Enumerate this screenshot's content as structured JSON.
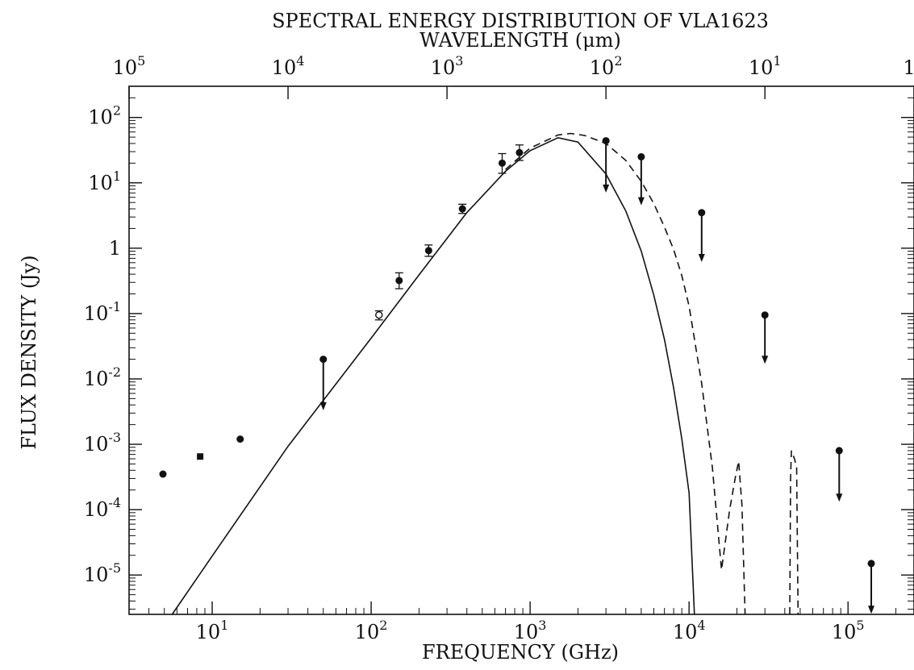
{
  "chart_data": {
    "type": "scatter",
    "title": "SPECTRAL ENERGY DISTRIBUTION OF VLA1623",
    "top_axis_label": "WAVELENGTH (μm)",
    "xlabel": "FREQUENCY (GHz)",
    "ylabel": "FLUX DENSITY (Jy)",
    "x_scale": "log",
    "y_scale": "log",
    "xlim": [
      3,
      260000
    ],
    "ylim": [
      2.5e-06,
      300
    ],
    "x_ticks": [
      {
        "value": 10,
        "base": "10",
        "exp": "1"
      },
      {
        "value": 100,
        "base": "10",
        "exp": "2"
      },
      {
        "value": 1000,
        "base": "10",
        "exp": "3"
      },
      {
        "value": 10000,
        "base": "10",
        "exp": "4"
      },
      {
        "value": 100000,
        "base": "10",
        "exp": "5"
      }
    ],
    "y_ticks": [
      {
        "value": 100,
        "base": "10",
        "exp": "2"
      },
      {
        "value": 10,
        "base": "10",
        "exp": "1"
      },
      {
        "value": 1,
        "base": "1",
        "exp": ""
      },
      {
        "value": 0.1,
        "base": "10",
        "exp": "-1"
      },
      {
        "value": 0.01,
        "base": "10",
        "exp": "-2"
      },
      {
        "value": 0.001,
        "base": "10",
        "exp": "-3"
      },
      {
        "value": 0.0001,
        "base": "10",
        "exp": "-4"
      },
      {
        "value": 1e-05,
        "base": "10",
        "exp": "-5"
      }
    ],
    "top_ticks": [
      {
        "wavelength": 100000,
        "base": "10",
        "exp": "5"
      },
      {
        "wavelength": 10000,
        "base": "10",
        "exp": "4"
      },
      {
        "wavelength": 1000,
        "base": "10",
        "exp": "3"
      },
      {
        "wavelength": 100,
        "base": "10",
        "exp": "2"
      },
      {
        "wavelength": 10,
        "base": "10",
        "exp": "1"
      },
      {
        "wavelength": 1,
        "base": "1",
        "exp": ""
      }
    ],
    "series": [
      {
        "kind": "detections",
        "points": [
          {
            "x": 4.9,
            "y": 0.00035
          },
          {
            "x": 8.4,
            "y": 0.00065,
            "marker": "square"
          },
          {
            "x": 15,
            "y": 0.0012
          },
          {
            "x": 112,
            "y": 0.095,
            "err_lo": 0.08,
            "err_hi": 0.11,
            "marker": "open"
          },
          {
            "x": 150,
            "y": 0.32,
            "err_lo": 0.24,
            "err_hi": 0.42
          },
          {
            "x": 230,
            "y": 0.92,
            "err_lo": 0.75,
            "err_hi": 1.12
          },
          {
            "x": 375,
            "y": 4.0,
            "err_lo": 3.4,
            "err_hi": 4.7
          },
          {
            "x": 667,
            "y": 20,
            "err_lo": 14,
            "err_hi": 28
          },
          {
            "x": 857,
            "y": 29,
            "err_lo": 22,
            "err_hi": 38
          }
        ]
      },
      {
        "kind": "upper_limits",
        "points": [
          {
            "x": 50,
            "y": 0.02,
            "y_end": 0.0035
          },
          {
            "x": 3000,
            "y": 44,
            "y_end": 7.5
          },
          {
            "x": 5000,
            "y": 25,
            "y_end": 4.8
          },
          {
            "x": 12000,
            "y": 3.5,
            "y_end": 0.65
          },
          {
            "x": 30000,
            "y": 0.095,
            "y_end": 0.018
          },
          {
            "x": 88000,
            "y": 0.0008,
            "y_end": 0.00014
          },
          {
            "x": 140000,
            "y": 1.5e-05,
            "y_end": 2.7e-06
          }
        ]
      },
      {
        "kind": "model_solid",
        "points": [
          [
            5.6,
            2.5e-06
          ],
          [
            10,
            1.95e-05
          ],
          [
            30,
            0.00093
          ],
          [
            100,
            0.042
          ],
          [
            200,
            0.39
          ],
          [
            400,
            3.5
          ],
          [
            700,
            15
          ],
          [
            1000,
            31
          ],
          [
            1500,
            49
          ],
          [
            2000,
            42
          ],
          [
            3000,
            13.7
          ],
          [
            4000,
            3.7
          ],
          [
            5000,
            0.9
          ],
          [
            6000,
            0.19
          ],
          [
            7000,
            0.04
          ],
          [
            8000,
            0.0072
          ],
          [
            9000,
            0.0012
          ],
          [
            10000,
            0.00018
          ],
          [
            10800,
            2.5e-06
          ]
        ]
      },
      {
        "kind": "model_dashed",
        "points": [
          [
            700,
            16
          ],
          [
            1000,
            34
          ],
          [
            1500,
            54
          ],
          [
            1800,
            57
          ],
          [
            2200,
            53
          ],
          [
            3000,
            40
          ],
          [
            4000,
            22
          ],
          [
            5000,
            10.5
          ],
          [
            6000,
            4.8
          ],
          [
            7000,
            2.1
          ],
          [
            8000,
            0.95
          ],
          [
            9000,
            0.38
          ],
          [
            10000,
            0.13
          ],
          [
            12000,
            0.0085
          ],
          [
            14000,
            0.00045
          ],
          [
            16000,
            1.2e-05
          ],
          [
            18000,
            0.0001
          ],
          [
            19500,
            0.0003
          ],
          [
            20500,
            0.00055
          ],
          [
            21500,
            0.00012
          ],
          [
            22500,
            2.5e-06
          ],
          [
            null,
            null
          ],
          [
            43000,
            2.5e-06
          ],
          [
            43500,
            0.0003
          ],
          [
            44000,
            0.0008
          ],
          [
            46000,
            0.0006
          ],
          [
            47500,
            0.00045
          ],
          [
            48500,
            2.5e-06
          ]
        ]
      }
    ]
  }
}
